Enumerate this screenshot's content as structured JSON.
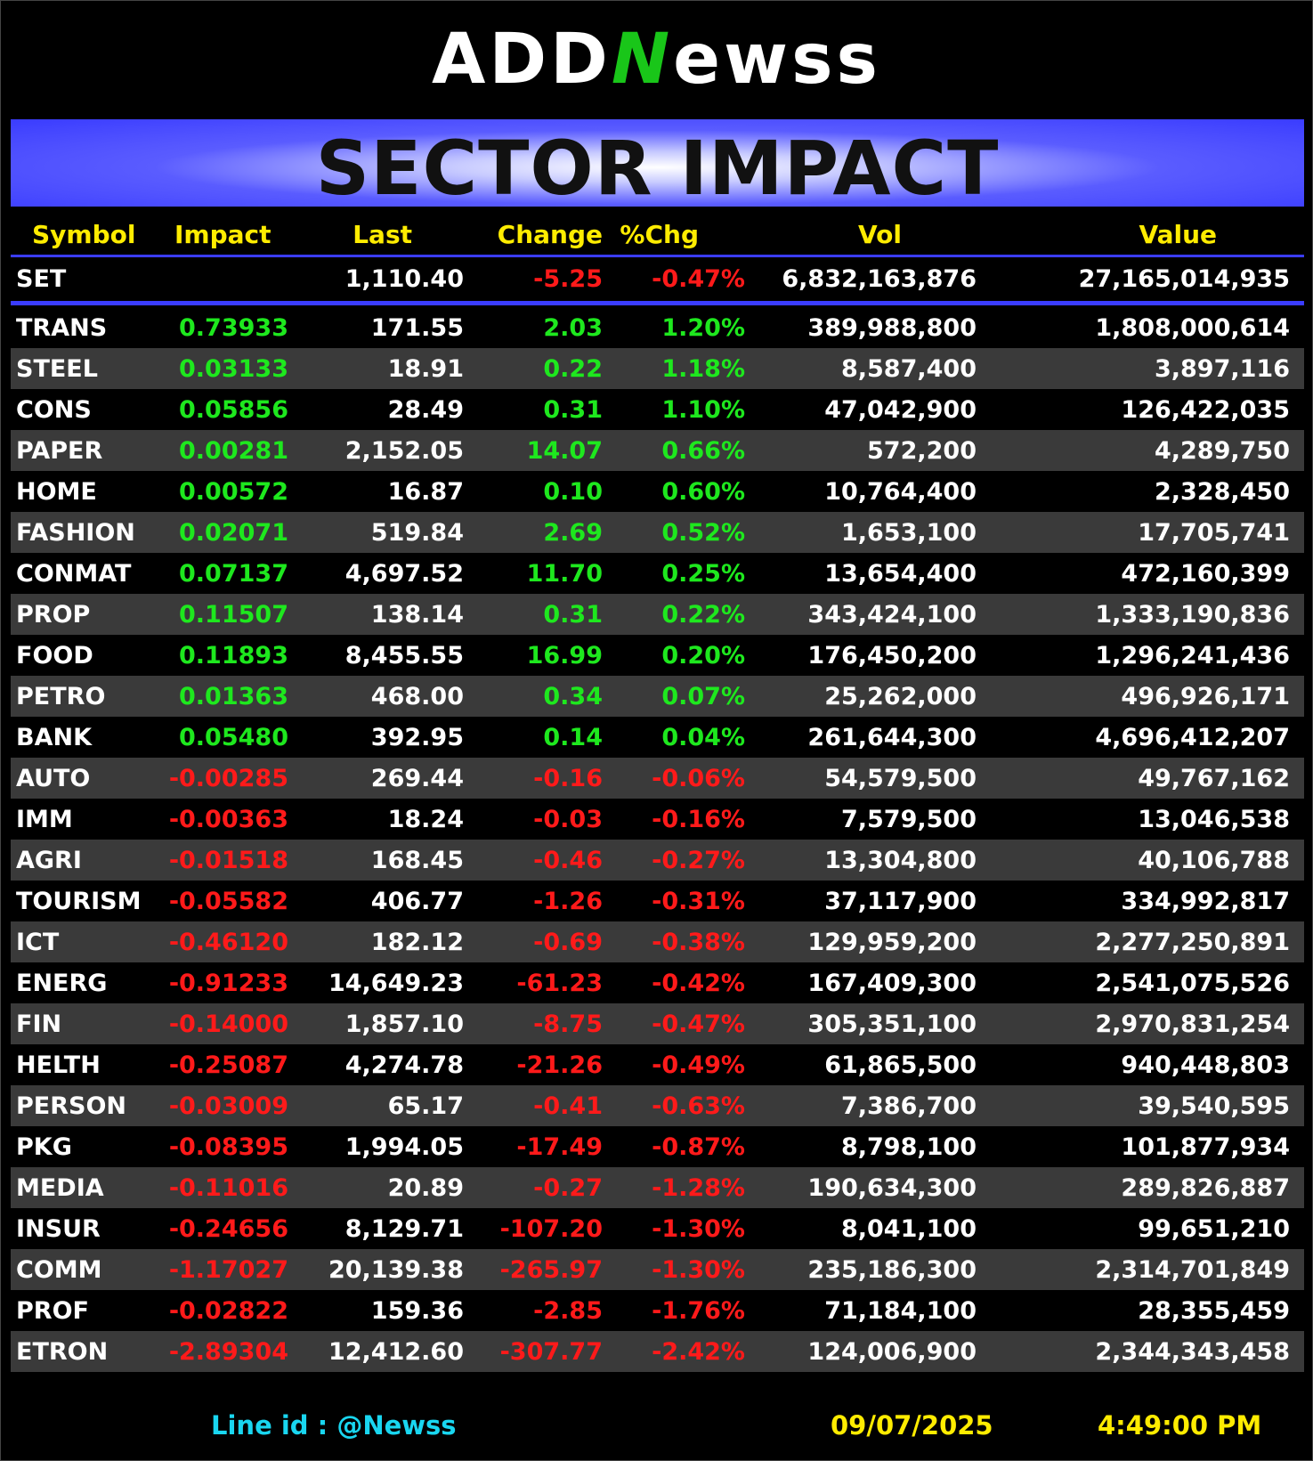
{
  "brand": {
    "pre": "ADD",
    "n": "N",
    "post": "ewss"
  },
  "banner_title": "SECTOR IMPACT",
  "columns": [
    "Symbol",
    "Impact",
    "Last",
    "Change",
    "%Chg",
    "Vol",
    "Value"
  ],
  "set_row": {
    "symbol": "SET",
    "impact": "",
    "last": "1,110.40",
    "change": "-5.25",
    "pct": "-0.47%",
    "vol": "6,832,163,876",
    "value": "27,165,014,935"
  },
  "rows": [
    {
      "symbol": "TRANS",
      "impact": "0.73933",
      "last": "171.55",
      "change": "2.03",
      "pct": "1.20%",
      "vol": "389,988,800",
      "value": "1,808,000,614"
    },
    {
      "symbol": "STEEL",
      "impact": "0.03133",
      "last": "18.91",
      "change": "0.22",
      "pct": "1.18%",
      "vol": "8,587,400",
      "value": "3,897,116"
    },
    {
      "symbol": "CONS",
      "impact": "0.05856",
      "last": "28.49",
      "change": "0.31",
      "pct": "1.10%",
      "vol": "47,042,900",
      "value": "126,422,035"
    },
    {
      "symbol": "PAPER",
      "impact": "0.00281",
      "last": "2,152.05",
      "change": "14.07",
      "pct": "0.66%",
      "vol": "572,200",
      "value": "4,289,750"
    },
    {
      "symbol": "HOME",
      "impact": "0.00572",
      "last": "16.87",
      "change": "0.10",
      "pct": "0.60%",
      "vol": "10,764,400",
      "value": "2,328,450"
    },
    {
      "symbol": "FASHION",
      "impact": "0.02071",
      "last": "519.84",
      "change": "2.69",
      "pct": "0.52%",
      "vol": "1,653,100",
      "value": "17,705,741"
    },
    {
      "symbol": "CONMAT",
      "impact": "0.07137",
      "last": "4,697.52",
      "change": "11.70",
      "pct": "0.25%",
      "vol": "13,654,400",
      "value": "472,160,399"
    },
    {
      "symbol": "PROP",
      "impact": "0.11507",
      "last": "138.14",
      "change": "0.31",
      "pct": "0.22%",
      "vol": "343,424,100",
      "value": "1,333,190,836"
    },
    {
      "symbol": "FOOD",
      "impact": "0.11893",
      "last": "8,455.55",
      "change": "16.99",
      "pct": "0.20%",
      "vol": "176,450,200",
      "value": "1,296,241,436"
    },
    {
      "symbol": "PETRO",
      "impact": "0.01363",
      "last": "468.00",
      "change": "0.34",
      "pct": "0.07%",
      "vol": "25,262,000",
      "value": "496,926,171"
    },
    {
      "symbol": "BANK",
      "impact": "0.05480",
      "last": "392.95",
      "change": "0.14",
      "pct": "0.04%",
      "vol": "261,644,300",
      "value": "4,696,412,207"
    },
    {
      "symbol": "AUTO",
      "impact": "-0.00285",
      "last": "269.44",
      "change": "-0.16",
      "pct": "-0.06%",
      "vol": "54,579,500",
      "value": "49,767,162"
    },
    {
      "symbol": "IMM",
      "impact": "-0.00363",
      "last": "18.24",
      "change": "-0.03",
      "pct": "-0.16%",
      "vol": "7,579,500",
      "value": "13,046,538"
    },
    {
      "symbol": "AGRI",
      "impact": "-0.01518",
      "last": "168.45",
      "change": "-0.46",
      "pct": "-0.27%",
      "vol": "13,304,800",
      "value": "40,106,788"
    },
    {
      "symbol": "TOURISM",
      "impact": "-0.05582",
      "last": "406.77",
      "change": "-1.26",
      "pct": "-0.31%",
      "vol": "37,117,900",
      "value": "334,992,817"
    },
    {
      "symbol": "ICT",
      "impact": "-0.46120",
      "last": "182.12",
      "change": "-0.69",
      "pct": "-0.38%",
      "vol": "129,959,200",
      "value": "2,277,250,891"
    },
    {
      "symbol": "ENERG",
      "impact": "-0.91233",
      "last": "14,649.23",
      "change": "-61.23",
      "pct": "-0.42%",
      "vol": "167,409,300",
      "value": "2,541,075,526"
    },
    {
      "symbol": "FIN",
      "impact": "-0.14000",
      "last": "1,857.10",
      "change": "-8.75",
      "pct": "-0.47%",
      "vol": "305,351,100",
      "value": "2,970,831,254"
    },
    {
      "symbol": "HELTH",
      "impact": "-0.25087",
      "last": "4,274.78",
      "change": "-21.26",
      "pct": "-0.49%",
      "vol": "61,865,500",
      "value": "940,448,803"
    },
    {
      "symbol": "PERSON",
      "impact": "-0.03009",
      "last": "65.17",
      "change": "-0.41",
      "pct": "-0.63%",
      "vol": "7,386,700",
      "value": "39,540,595"
    },
    {
      "symbol": "PKG",
      "impact": "-0.08395",
      "last": "1,994.05",
      "change": "-17.49",
      "pct": "-0.87%",
      "vol": "8,798,100",
      "value": "101,877,934"
    },
    {
      "symbol": "MEDIA",
      "impact": "-0.11016",
      "last": "20.89",
      "change": "-0.27",
      "pct": "-1.28%",
      "vol": "190,634,300",
      "value": "289,826,887"
    },
    {
      "symbol": "INSUR",
      "impact": "-0.24656",
      "last": "8,129.71",
      "change": "-107.20",
      "pct": "-1.30%",
      "vol": "8,041,100",
      "value": "99,651,210"
    },
    {
      "symbol": "COMM",
      "impact": "-1.17027",
      "last": "20,139.38",
      "change": "-265.97",
      "pct": "-1.30%",
      "vol": "235,186,300",
      "value": "2,314,701,849"
    },
    {
      "symbol": "PROF",
      "impact": "-0.02822",
      "last": "159.36",
      "change": "-2.85",
      "pct": "-1.76%",
      "vol": "71,184,100",
      "value": "28,355,459"
    },
    {
      "symbol": "ETRON",
      "impact": "-2.89304",
      "last": "12,412.60",
      "change": "-307.77",
      "pct": "-2.42%",
      "vol": "124,006,900",
      "value": "2,344,343,458"
    }
  ],
  "footer": {
    "line_id": "Line id  : @Newss",
    "date": "09/07/2025",
    "time": "4:49:00 PM"
  },
  "colors": {
    "positive": "#1ee81e",
    "negative": "#ff1a1a",
    "header_text": "#ffec00",
    "accent_blue": "#3a3cff",
    "alt_row": "#3a3a3a",
    "footer_cyan": "#19d6f0"
  }
}
